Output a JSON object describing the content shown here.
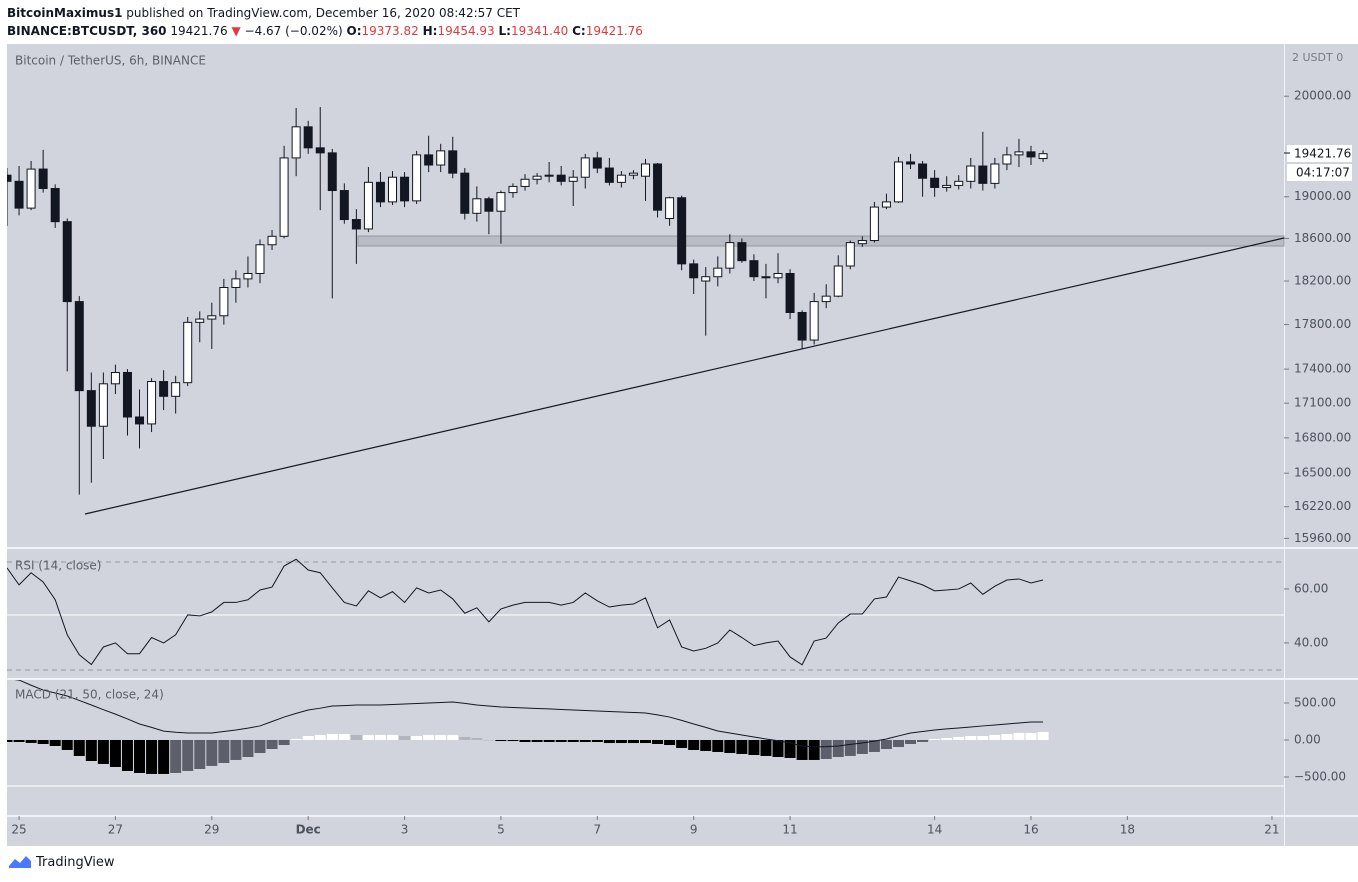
{
  "header": {
    "author": "BitcoinMaximus1",
    "published": "published on TradingView.com, December 16, 2020 08:42:57 CET",
    "symbol": "BINANCE:BTCUSDT, 360",
    "price": "19421.76",
    "arrow": "▼",
    "change": "−4.67 (−0.02%)",
    "o_label": "O:",
    "o": "19373.82",
    "h_label": "H:",
    "h": "19454.93",
    "l_label": "L:",
    "l": "19341.40",
    "c_label": "C:",
    "c": "19421.76"
  },
  "footer": {
    "brand": "TradingView"
  },
  "chart_data": [
    {
      "type": "candlestick",
      "title": "Bitcoin / TetherUS, 6h, BINANCE",
      "log_scale": true,
      "grid": false,
      "up_color": "#ffffff",
      "down_color": "#131722",
      "border_color": "#131722",
      "axis_unit": "2 USDT 0",
      "last_price_label": "19421.76",
      "countdown": "04:17:07",
      "xlim": [
        -0.25,
        26.25
      ],
      "xticks": [
        {
          "value": 0,
          "label": "25"
        },
        {
          "value": 2,
          "label": "27"
        },
        {
          "value": 4,
          "label": "29"
        },
        {
          "value": 6,
          "label": "Dec"
        },
        {
          "value": 8,
          "label": "3"
        },
        {
          "value": 10,
          "label": "5"
        },
        {
          "value": 12,
          "label": "7"
        },
        {
          "value": 14,
          "label": "9"
        },
        {
          "value": 16,
          "label": "11"
        },
        {
          "value": 19,
          "label": "14"
        },
        {
          "value": 21,
          "label": "16"
        },
        {
          "value": 23,
          "label": "18"
        },
        {
          "value": 26,
          "label": "21"
        }
      ],
      "ylim": [
        15890,
        20540
      ],
      "yticks": [
        {
          "value": 20000,
          "label": "20000.00"
        },
        {
          "value": 19000,
          "label": "19000.00"
        },
        {
          "value": 18600,
          "label": "18600.00"
        },
        {
          "value": 18200,
          "label": "18200.00"
        },
        {
          "value": 17800,
          "label": "17800.00"
        },
        {
          "value": 17400,
          "label": "17400.00"
        },
        {
          "value": 17100,
          "label": "17100.00"
        },
        {
          "value": 16800,
          "label": "16800.00"
        },
        {
          "value": 16500,
          "label": "16500.00"
        },
        {
          "value": 16220,
          "label": "16220.00"
        },
        {
          "value": 15960,
          "label": "15960.00"
        }
      ],
      "x": [
        -0.25,
        0,
        0.25,
        0.5,
        0.75,
        1,
        1.25,
        1.5,
        1.75,
        2,
        2.25,
        2.5,
        2.75,
        3,
        3.25,
        3.5,
        3.75,
        4,
        4.25,
        4.5,
        4.75,
        5,
        5.25,
        5.5,
        5.75,
        6,
        6.25,
        6.5,
        6.75,
        7,
        7.25,
        7.5,
        7.75,
        8,
        8.25,
        8.5,
        8.75,
        9,
        9.25,
        9.5,
        9.75,
        10,
        10.25,
        10.5,
        10.75,
        11,
        11.25,
        11.5,
        11.75,
        12,
        12.25,
        12.5,
        12.75,
        13,
        13.25,
        13.5,
        13.75,
        14,
        14.25,
        14.5,
        14.75,
        15,
        15.25,
        15.5,
        15.75,
        16,
        16.25,
        16.5,
        16.75,
        17,
        17.25,
        17.5,
        17.75,
        18,
        18.25,
        18.5,
        18.75,
        19,
        19.25,
        19.5,
        19.75,
        20,
        20.25,
        20.5,
        20.75,
        21,
        21.25
      ],
      "open": [
        19210,
        19150,
        18890,
        19270,
        19080,
        18760,
        18010,
        17210,
        16900,
        17270,
        17370,
        16980,
        16920,
        17290,
        17160,
        17280,
        17820,
        17850,
        17880,
        18140,
        18220,
        18270,
        18540,
        18620,
        19380,
        19690,
        19480,
        19430,
        19060,
        18780,
        18690,
        19140,
        18950,
        19190,
        18960,
        19410,
        19310,
        19450,
        19230,
        18840,
        18980,
        18860,
        19040,
        19100,
        19170,
        19200,
        19210,
        19150,
        19190,
        19380,
        19280,
        19140,
        19210,
        19200,
        19320,
        18790,
        18990,
        18360,
        18200,
        18240,
        18320,
        18560,
        18390,
        18240,
        18230,
        18270,
        17910,
        17660,
        18010,
        18060,
        18340,
        18550,
        18580,
        18900,
        18950,
        19340,
        19320,
        19180,
        19090,
        19110,
        19150,
        19300,
        19130,
        19320,
        19410,
        19440,
        19373.82
      ],
      "high": [
        19280,
        19300,
        19350,
        19460,
        19120,
        18790,
        18060,
        17370,
        17370,
        17440,
        17400,
        17220,
        17320,
        17390,
        17340,
        17870,
        17920,
        18000,
        18220,
        18300,
        18430,
        18590,
        18680,
        19500,
        19880,
        19750,
        19890,
        19470,
        19130,
        18880,
        19290,
        19240,
        19250,
        19240,
        19450,
        19600,
        19520,
        19590,
        19280,
        19100,
        19000,
        19060,
        19130,
        19220,
        19230,
        19340,
        19300,
        19260,
        19420,
        19440,
        19380,
        19250,
        19260,
        19370,
        19330,
        19000,
        19010,
        18400,
        18330,
        18430,
        18640,
        18600,
        18450,
        18360,
        18460,
        18310,
        17930,
        18090,
        18170,
        18440,
        18580,
        18620,
        18950,
        19030,
        19390,
        19420,
        19350,
        19260,
        19200,
        19210,
        19380,
        19640,
        19380,
        19490,
        19570,
        19500,
        19454.93
      ],
      "low": [
        18720,
        18820,
        18870,
        19040,
        18700,
        17380,
        16320,
        16420,
        16620,
        17180,
        16820,
        16710,
        16850,
        17040,
        17010,
        17250,
        17640,
        17580,
        17800,
        18000,
        18140,
        18180,
        18490,
        18600,
        19200,
        19420,
        18870,
        18040,
        18740,
        18360,
        18660,
        18900,
        18920,
        18900,
        18930,
        19240,
        19240,
        19180,
        18780,
        18760,
        18640,
        18550,
        18990,
        19060,
        19120,
        19140,
        19110,
        18910,
        19080,
        19230,
        19110,
        19090,
        19170,
        18960,
        18800,
        18720,
        18300,
        18080,
        17700,
        18150,
        18270,
        18370,
        18200,
        18040,
        18180,
        17850,
        17580,
        17620,
        17950,
        18050,
        18310,
        18520,
        18560,
        18880,
        18940,
        19270,
        19000,
        19000,
        19050,
        19070,
        19080,
        19060,
        19080,
        19260,
        19290,
        19310,
        19341.4
      ],
      "close": [
        19150,
        18890,
        19270,
        19080,
        18760,
        18010,
        17210,
        16900,
        17270,
        17370,
        16980,
        16920,
        17290,
        17160,
        17280,
        17820,
        17850,
        17880,
        18140,
        18220,
        18270,
        18540,
        18620,
        19380,
        19690,
        19480,
        19430,
        19060,
        18780,
        18690,
        19140,
        18950,
        19190,
        18960,
        19410,
        19310,
        19450,
        19230,
        18840,
        18980,
        18860,
        19040,
        19100,
        19170,
        19200,
        19210,
        19150,
        19190,
        19380,
        19280,
        19140,
        19210,
        19230,
        19320,
        18870,
        18990,
        18360,
        18230,
        18240,
        18320,
        18560,
        18390,
        18240,
        18230,
        18270,
        17910,
        17660,
        18010,
        18060,
        18340,
        18560,
        18580,
        18900,
        18950,
        19340,
        19320,
        19180,
        19090,
        19110,
        19150,
        19300,
        19130,
        19320,
        19410,
        19440,
        19390,
        19421.76
      ]
    },
    {
      "type": "line",
      "title": "RSI (14, close)",
      "color": "#131722",
      "ylim": [
        27,
        74.8
      ],
      "yticks": [
        {
          "value": 60,
          "label": "60.00"
        },
        {
          "value": 40,
          "label": "40.00"
        }
      ],
      "values": [
        67.8,
        61.5,
        66,
        62.6,
        56,
        43,
        35.6,
        32,
        38.5,
        40,
        36,
        36,
        42,
        40,
        43,
        50.4,
        50,
        51.5,
        55,
        55,
        56,
        59.6,
        60.7,
        68.5,
        71,
        67,
        66,
        60.4,
        55,
        53.7,
        59.3,
        56.7,
        59,
        55,
        60.4,
        58.5,
        59.6,
        56.3,
        51,
        53,
        47.8,
        52.6,
        54,
        55,
        55,
        55,
        54,
        55,
        58.5,
        55.6,
        53.3,
        54,
        54.4,
        56.7,
        45.6,
        48.5,
        38.5,
        37,
        38,
        40,
        44.8,
        42,
        39,
        40,
        40.7,
        34.8,
        31.9,
        40.7,
        41.8,
        47.4,
        50.7,
        50.7,
        56.3,
        57,
        64.4,
        63,
        61.5,
        59.3,
        59.6,
        60,
        62.2,
        58,
        61,
        63.3,
        63.7,
        62.2,
        63.3
      ]
    },
    {
      "type": "macd",
      "title": "MACD (21, 50, close, 24)",
      "color": "#131722",
      "histogram_colors": [
        "#ffffff",
        "#b2b5be",
        "#5d606b",
        "#000000"
      ],
      "ylim": [
        -1014,
        811
      ],
      "yticks": [
        {
          "value": 500,
          "label": "500.00"
        },
        {
          "value": 0,
          "label": "0.00"
        },
        {
          "value": -500,
          "label": "−500.00"
        }
      ],
      "macd": [
        830,
        810,
        740,
        675,
        635,
        595,
        535,
        473,
        410,
        350,
        285,
        216,
        170,
        120,
        105,
        95,
        95,
        95,
        115,
        135,
        160,
        190,
        250,
        310,
        360,
        405,
        430,
        460,
        465,
        473,
        473,
        473,
        480,
        486,
        493,
        500,
        506,
        513,
        495,
        473,
        460,
        446,
        440,
        432,
        426,
        420,
        412,
        405,
        398,
        392,
        385,
        378,
        372,
        365,
        340,
        310,
        265,
        216,
        170,
        122,
        95,
        68,
        40,
        14,
        -10,
        -40,
        -81,
        -95,
        -90,
        -81,
        -60,
        -40,
        -15,
        14,
        55,
        95,
        115,
        135,
        150,
        162,
        176,
        190,
        203,
        216,
        230,
        243,
        243
      ],
      "histogram": [
        -27,
        -27,
        -40,
        -54,
        -81,
        -135,
        -216,
        -284,
        -324,
        -365,
        -419,
        -446,
        -459,
        -459,
        -446,
        -419,
        -392,
        -351,
        -311,
        -270,
        -230,
        -176,
        -122,
        -68,
        14,
        54,
        68,
        81,
        81,
        68,
        68,
        68,
        68,
        54,
        54,
        68,
        68,
        68,
        41,
        27,
        0,
        -14,
        -14,
        -27,
        -27,
        -27,
        -27,
        -27,
        -27,
        -27,
        -41,
        -41,
        -41,
        -41,
        -54,
        -68,
        -108,
        -135,
        -149,
        -162,
        -176,
        -189,
        -203,
        -216,
        -230,
        -243,
        -270,
        -270,
        -257,
        -230,
        -216,
        -189,
        -162,
        -122,
        -95,
        -54,
        -27,
        14,
        27,
        41,
        54,
        54,
        68,
        81,
        95,
        95,
        108
      ]
    }
  ]
}
